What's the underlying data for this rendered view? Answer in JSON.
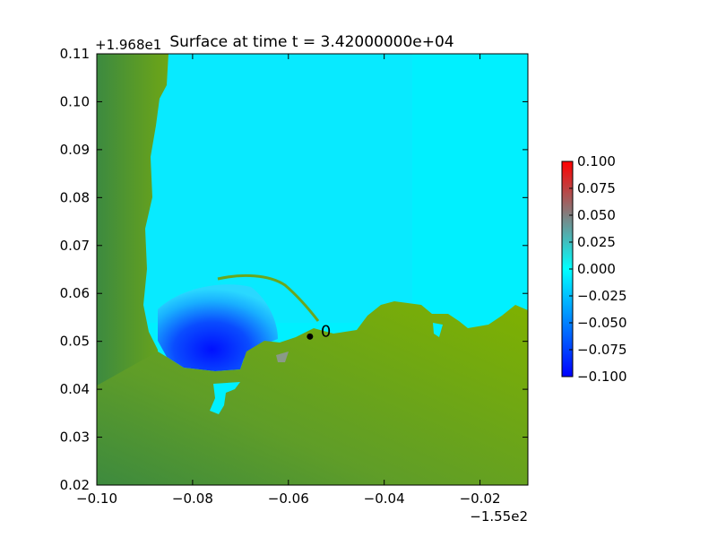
{
  "chart_data": {
    "type": "heatmap",
    "title": "Surface at time t = 3.42000000e+04",
    "xlabel": "",
    "ylabel": "",
    "x_offset_label": "−1.55e2",
    "y_offset_label": "+1.968e1",
    "xlim": [
      -0.1,
      -0.01
    ],
    "ylim": [
      0.02,
      0.11
    ],
    "x_ticks": [
      -0.1,
      -0.08,
      -0.06,
      -0.04,
      -0.02
    ],
    "x_tick_labels": [
      "−0.10",
      "−0.08",
      "−0.06",
      "−0.04",
      "−0.02"
    ],
    "y_ticks": [
      0.02,
      0.03,
      0.04,
      0.05,
      0.06,
      0.07,
      0.08,
      0.09,
      0.1,
      0.11
    ],
    "y_tick_labels": [
      "0.02",
      "0.03",
      "0.04",
      "0.05",
      "0.06",
      "0.07",
      "0.08",
      "0.09",
      "0.10",
      "0.11"
    ],
    "colorbar": {
      "vmin": -0.1,
      "vmax": 0.1,
      "ticks": [
        0.1,
        0.075,
        0.05,
        0.025,
        0.0,
        -0.025,
        -0.05,
        -0.075,
        -0.1
      ],
      "tick_labels": [
        "0.100",
        "0.075",
        "0.050",
        "0.025",
        "0.000",
        "−0.025",
        "−0.050",
        "−0.075",
        "−0.100"
      ],
      "colors": [
        "#0000ff",
        "#00ffff",
        "#808080",
        "#ff0000"
      ]
    },
    "marker": {
      "x": -0.0555,
      "y": 0.051,
      "label": "0"
    },
    "grid": false,
    "colors": {
      "water": "#00f0ff",
      "land_dark": "#3c8a3c",
      "land_mid": "#66a022",
      "land_light": "#7fb000",
      "depression": "#0a24ff"
    }
  }
}
